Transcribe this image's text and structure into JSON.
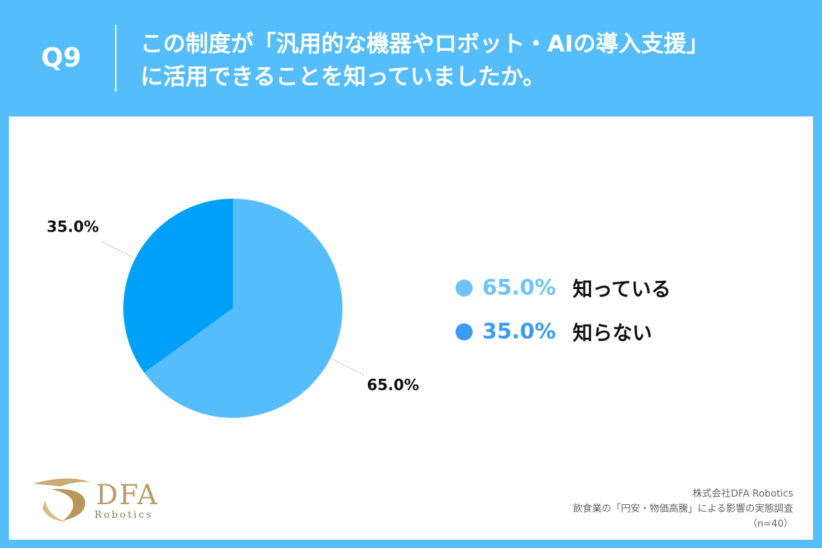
{
  "header": {
    "question_number": "Q9",
    "title_lines": [
      "この制度が「汎用的な機器やロボット・AIの導入支援」",
      "に活用できることを知っていましたか。"
    ]
  },
  "chart_data": {
    "type": "pie",
    "slices": [
      {
        "label": "知っている",
        "value": 65.0,
        "display": "65.0%",
        "color": "#55bdfb",
        "legend_color": "#6ec3fa"
      },
      {
        "label": "知らない",
        "value": 35.0,
        "display": "35.0%",
        "color": "#00a0f9",
        "legend_color": "#3a9cf2"
      }
    ],
    "start_angle_deg": 0,
    "direction": "clockwise",
    "legend_position": "right"
  },
  "logo": {
    "name": "DFA",
    "sub": "Robotics"
  },
  "credits": {
    "company": "株式会社DFA Robotics",
    "survey": "飲食業の「円安・物価高騰」による影響の実態調査",
    "sample": "（n=40）"
  }
}
